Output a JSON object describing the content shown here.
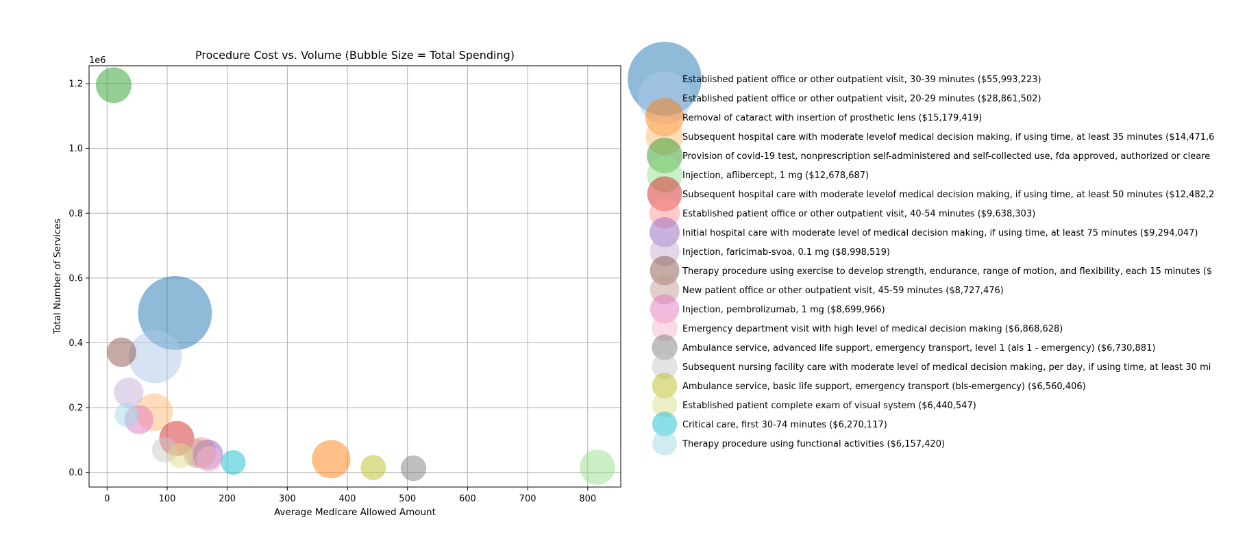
{
  "chart_data": {
    "type": "scatter",
    "title": "Procedure Cost vs. Volume (Bubble Size = Total Spending)",
    "xlabel": "Average Medicare Allowed Amount",
    "ylabel": "Total Number of Services",
    "y_offset_label": "1e6",
    "xlim": [
      -30,
      855
    ],
    "ylim": [
      -45000,
      1255000
    ],
    "x_ticks": [
      0,
      100,
      200,
      300,
      400,
      500,
      600,
      700,
      800
    ],
    "y_ticks": [
      0,
      200000,
      400000,
      600000,
      800000,
      1000000,
      1200000
    ],
    "y_tick_labels": [
      "0.0",
      "0.2",
      "0.4",
      "0.6",
      "0.8",
      "1.0",
      "1.2"
    ],
    "grid": true,
    "legend_position": "outside-right",
    "points": [
      {
        "label": "Established patient office or other outpatient visit, 30-39 minutes ($55,993,223)",
        "x": 113,
        "y": 492000,
        "spending": 55993223,
        "color": "#1f77b4"
      },
      {
        "label": "Established patient office or other outpatient visit, 20-29 minutes ($28,861,502)",
        "x": 80,
        "y": 357000,
        "spending": 28861502,
        "color": "#aec7e8"
      },
      {
        "label": "Removal of cataract with insertion of prosthetic lens ($15,179,419)",
        "x": 373,
        "y": 41000,
        "spending": 15179419,
        "color": "#ff7f0e"
      },
      {
        "label": "Subsequent hospital care with moderate levelof medical decision making, if using time, at least 35 minutes ($14,471,6",
        "x": 78,
        "y": 186000,
        "spending": 14471600,
        "color": "#ffbb78"
      },
      {
        "label": "Provision of covid-19 test, nonprescription self-administered and self-collected use, fda approved, authorized or cleare",
        "x": 11,
        "y": 1195000,
        "spending": 13000000,
        "color": "#2ca02c"
      },
      {
        "label": "Injection, aflibercept, 1 mg ($12,678,687)",
        "x": 816,
        "y": 16000,
        "spending": 12678687,
        "color": "#98df8a"
      },
      {
        "label": "Subsequent hospital care with moderate levelof medical decision making, if using time, at least 50 minutes ($12,482,2",
        "x": 116,
        "y": 105000,
        "spending": 12482200,
        "color": "#d62728"
      },
      {
        "label": "Established patient office or other outpatient visit, 40-54 minutes ($9,638,303)",
        "x": 157,
        "y": 62000,
        "spending": 9638303,
        "color": "#ff9896"
      },
      {
        "label": "Initial hospital care with moderate level of medical decision making, if using time, at least 75 minutes ($9,294,047)",
        "x": 168,
        "y": 55000,
        "spending": 9294047,
        "color": "#9467bd"
      },
      {
        "label": "Injection, faricimab-svoa, 0.1 mg ($8,998,519)",
        "x": 36,
        "y": 247000,
        "spending": 8998519,
        "color": "#c5b0d5"
      },
      {
        "label": "Therapy procedure using exercise to develop strength, endurance, range of motion, and flexibility, each 15 minutes ($",
        "x": 24,
        "y": 371000,
        "spending": 8900000,
        "color": "#8c564b"
      },
      {
        "label": "New patient office or other outpatient visit, 45-59 minutes ($8,727,476)",
        "x": 151,
        "y": 58000,
        "spending": 8727476,
        "color": "#c49c94"
      },
      {
        "label": "Injection, pembrolizumab, 1 mg ($8,699,966)",
        "x": 53,
        "y": 163000,
        "spending": 8699966,
        "color": "#e377c2"
      },
      {
        "label": "Emergency department visit with high level of medical decision making ($6,868,628)",
        "x": 170,
        "y": 41000,
        "spending": 6868628,
        "color": "#f7b6d2"
      },
      {
        "label": "Ambulance service, advanced life support, emergency transport, level 1 (als 1 - emergency) ($6,730,881)",
        "x": 510,
        "y": 13000,
        "spending": 6730881,
        "color": "#7f7f7f"
      },
      {
        "label": "Subsequent nursing facility care with moderate level of medical decision making, per day, if using time, at least 30 mi",
        "x": 96,
        "y": 70000,
        "spending": 6700000,
        "color": "#c7c7c7"
      },
      {
        "label": "Ambulance service, basic life support, emergency transport (bls-emergency) ($6,560,406)",
        "x": 443,
        "y": 15000,
        "spending": 6560406,
        "color": "#bcbd22"
      },
      {
        "label": "Established patient complete exam of visual system ($6,440,547)",
        "x": 122,
        "y": 52000,
        "spending": 6440547,
        "color": "#dbdb8d"
      },
      {
        "label": "Critical care, first 30-74 minutes ($6,270,117)",
        "x": 210,
        "y": 31000,
        "spending": 6270117,
        "color": "#17becf"
      },
      {
        "label": "Therapy procedure using functional activities ($6,157,420)",
        "x": 33,
        "y": 178000,
        "spending": 6157420,
        "color": "#9edae5"
      }
    ]
  }
}
